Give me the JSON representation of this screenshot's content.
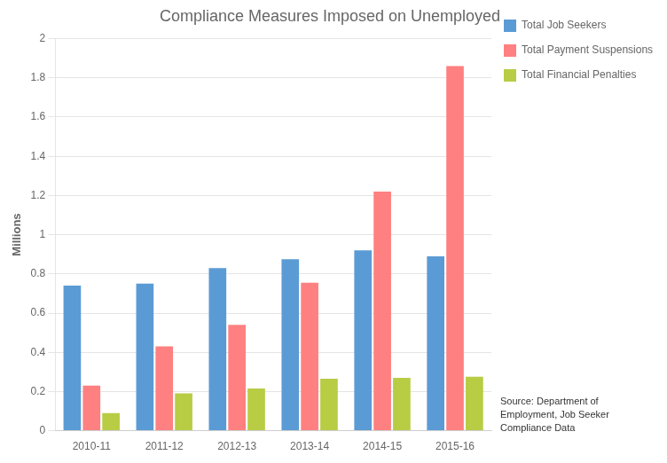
{
  "chart_data": {
    "type": "bar",
    "title": "Compliance Measures Imposed on Unemployed",
    "ylabel": "Millions",
    "categories": [
      "2010-11",
      "2011-12",
      "2012-13",
      "2013-14",
      "2014-15",
      "2015-16"
    ],
    "series": [
      {
        "name": "Total Job Seekers",
        "color": "#5B9BD5",
        "values": [
          0.74,
          0.75,
          0.83,
          0.875,
          0.92,
          0.89
        ]
      },
      {
        "name": "Total Payment Suspensions",
        "color": "#FF8080",
        "values": [
          0.23,
          0.43,
          0.54,
          0.755,
          1.22,
          1.86
        ]
      },
      {
        "name": "Total Financial Penalties",
        "color": "#B8CC44",
        "values": [
          0.09,
          0.19,
          0.215,
          0.265,
          0.27,
          0.275
        ]
      }
    ],
    "ylim": [
      0,
      2.0
    ],
    "yticks": [
      0,
      0.2,
      0.4,
      0.6,
      0.8,
      1,
      1.2,
      1.4,
      1.6,
      1.8,
      2
    ],
    "grid": true,
    "legend": "right",
    "annotations": [
      "Source: Department of\nEmployment, Job Seeker\nCompliance Data"
    ]
  }
}
